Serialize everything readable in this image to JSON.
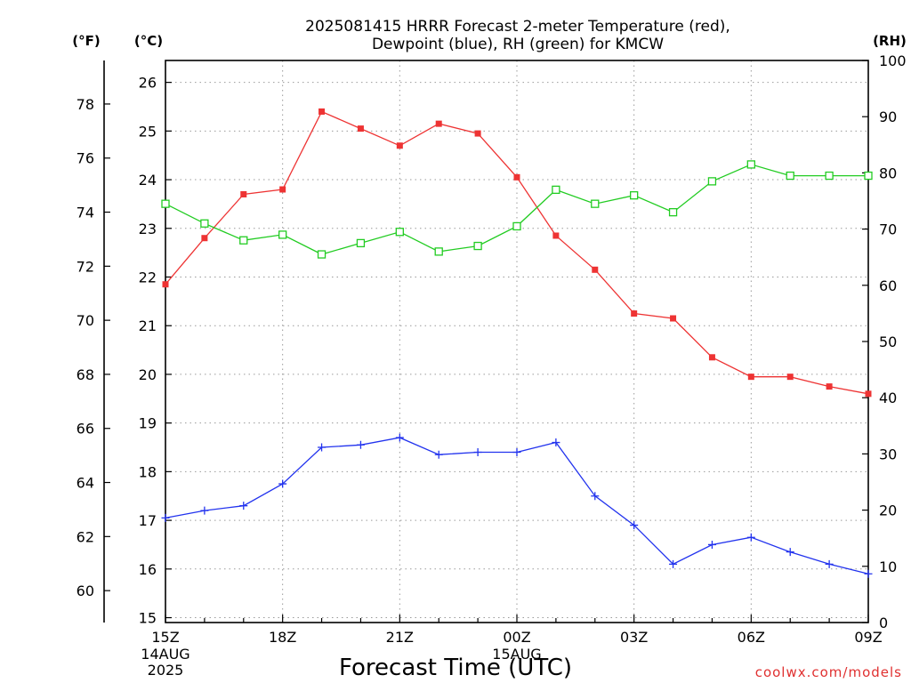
{
  "title_line1": "2025081415 HRRR Forecast 2-meter Temperature (red),",
  "title_line2": "Dewpoint (blue), RH (green) for KMCW",
  "units": {
    "fahrenheit": "(°F)",
    "celsius": "(°C)",
    "rh": "(RH)"
  },
  "xlabel": "Forecast Time (UTC)",
  "credit": "coolwx.com/models",
  "colors": {
    "temperature": "#ee3333",
    "dewpoint": "#2233ee",
    "rh": "#22cc22"
  },
  "chart_data": {
    "type": "line",
    "title": "2025081415 HRRR Forecast 2-meter Temperature (red), Dewpoint (blue), RH (green) for KMCW",
    "xlabel": "Forecast Time (UTC)",
    "x_hours": [
      "15Z",
      "16Z",
      "17Z",
      "18Z",
      "19Z",
      "20Z",
      "21Z",
      "22Z",
      "23Z",
      "00Z",
      "01Z",
      "02Z",
      "03Z",
      "04Z",
      "05Z",
      "06Z",
      "07Z",
      "08Z",
      "09Z"
    ],
    "x_ticks": [
      {
        "label": "15Z",
        "sub": [
          "14AUG",
          "2025"
        ]
      },
      {
        "label": "18Z",
        "sub": []
      },
      {
        "label": "21Z",
        "sub": []
      },
      {
        "label": "00Z",
        "sub": [
          "15AUG"
        ]
      },
      {
        "label": "03Z",
        "sub": []
      },
      {
        "label": "06Z",
        "sub": []
      },
      {
        "label": "09Z",
        "sub": []
      }
    ],
    "y_celsius": {
      "ylim": [
        14.9,
        26.45
      ],
      "ticks": [
        "15",
        "16",
        "17",
        "18",
        "19",
        "20",
        "21",
        "22",
        "23",
        "24",
        "25",
        "26"
      ]
    },
    "y_fahrenheit": {
      "ticks": [
        "60",
        "62",
        "64",
        "66",
        "68",
        "70",
        "72",
        "74",
        "76",
        "78"
      ]
    },
    "y_rh": {
      "ylim": [
        0,
        100
      ],
      "ticks": [
        "0",
        "10",
        "20",
        "30",
        "40",
        "50",
        "60",
        "70",
        "80",
        "90",
        "100"
      ]
    },
    "grid": true,
    "series": [
      {
        "name": "Temperature",
        "axis": "celsius",
        "marker": "filled-square",
        "values": [
          21.85,
          22.8,
          23.7,
          23.8,
          25.4,
          25.05,
          24.7,
          25.15,
          24.95,
          24.05,
          22.85,
          22.15,
          21.25,
          21.15,
          20.35,
          19.95,
          19.95,
          19.75,
          19.6
        ]
      },
      {
        "name": "Dewpoint",
        "axis": "celsius",
        "marker": "plus",
        "values": [
          17.05,
          17.2,
          17.3,
          17.75,
          18.5,
          18.55,
          18.7,
          18.35,
          18.4,
          18.4,
          18.6,
          17.5,
          16.9,
          16.1,
          16.5,
          16.65,
          16.35,
          16.1,
          15.9
        ]
      },
      {
        "name": "RH",
        "axis": "rh",
        "marker": "open-square",
        "values": [
          74.5,
          71,
          68,
          69,
          65.5,
          67.5,
          69.5,
          66,
          67,
          70.5,
          77,
          74.5,
          76,
          73,
          78.5,
          81.5,
          79.5,
          79.5,
          79.5
        ]
      }
    ]
  }
}
